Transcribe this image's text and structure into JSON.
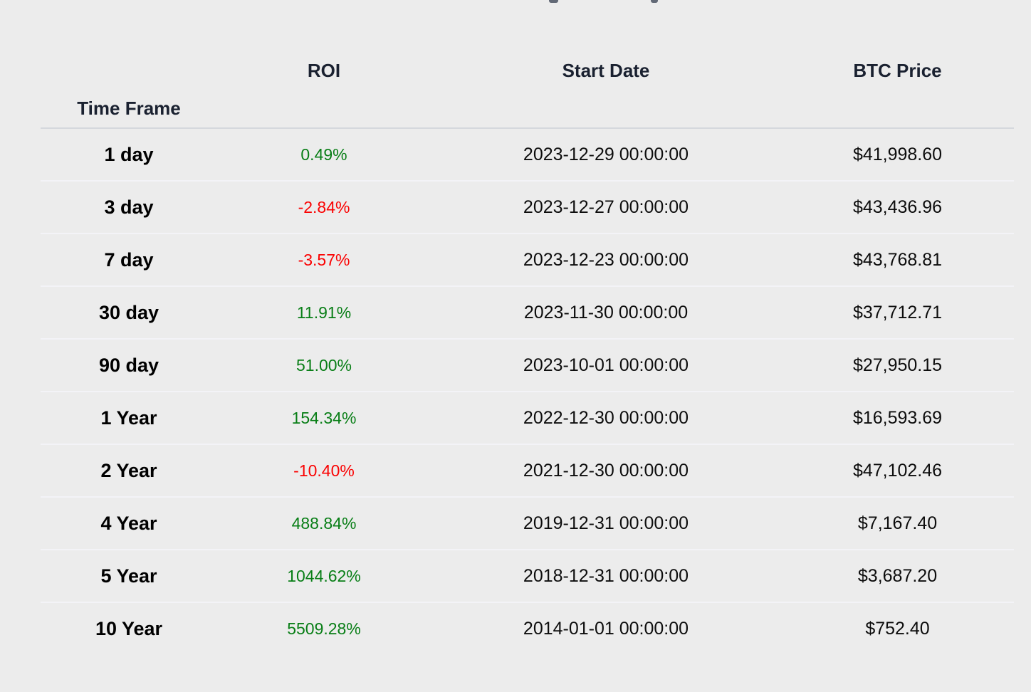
{
  "chart_data": {
    "type": "table",
    "index_label": "Time Frame",
    "columns": [
      "ROI",
      "Start Date",
      "BTC Price"
    ],
    "rows": [
      {
        "time_frame": "1 day",
        "roi": "0.49%",
        "start_date": "2023-12-29 00:00:00",
        "btc_price": "$41,998.60"
      },
      {
        "time_frame": "3 day",
        "roi": "-2.84%",
        "start_date": "2023-12-27 00:00:00",
        "btc_price": "$43,436.96"
      },
      {
        "time_frame": "7 day",
        "roi": "-3.57%",
        "start_date": "2023-12-23 00:00:00",
        "btc_price": "$43,768.81"
      },
      {
        "time_frame": "30 day",
        "roi": "11.91%",
        "start_date": "2023-11-30 00:00:00",
        "btc_price": "$37,712.71"
      },
      {
        "time_frame": "90 day",
        "roi": "51.00%",
        "start_date": "2023-10-01 00:00:00",
        "btc_price": "$27,950.15"
      },
      {
        "time_frame": "1 Year",
        "roi": "154.34%",
        "start_date": "2022-12-30 00:00:00",
        "btc_price": "$16,593.69"
      },
      {
        "time_frame": "2 Year",
        "roi": "-10.40%",
        "start_date": "2021-12-30 00:00:00",
        "btc_price": "$47,102.46"
      },
      {
        "time_frame": "4 Year",
        "roi": "488.84%",
        "start_date": "2019-12-31 00:00:00",
        "btc_price": "$7,167.40"
      },
      {
        "time_frame": "5 Year",
        "roi": "1044.62%",
        "start_date": "2018-12-31 00:00:00",
        "btc_price": "$3,687.20"
      },
      {
        "time_frame": "10 Year",
        "roi": "5509.28%",
        "start_date": "2014-01-01 00:00:00",
        "btc_price": "$752.40"
      }
    ]
  },
  "colors": {
    "positive_roi": "#087e16",
    "negative_roi": "#fa0202",
    "header_text": "#1a2130",
    "body_text": "#0d0d0d",
    "page_background": "#ececec",
    "header_divider": "#d5d8dd",
    "row_divider": "#f3f3f7"
  }
}
